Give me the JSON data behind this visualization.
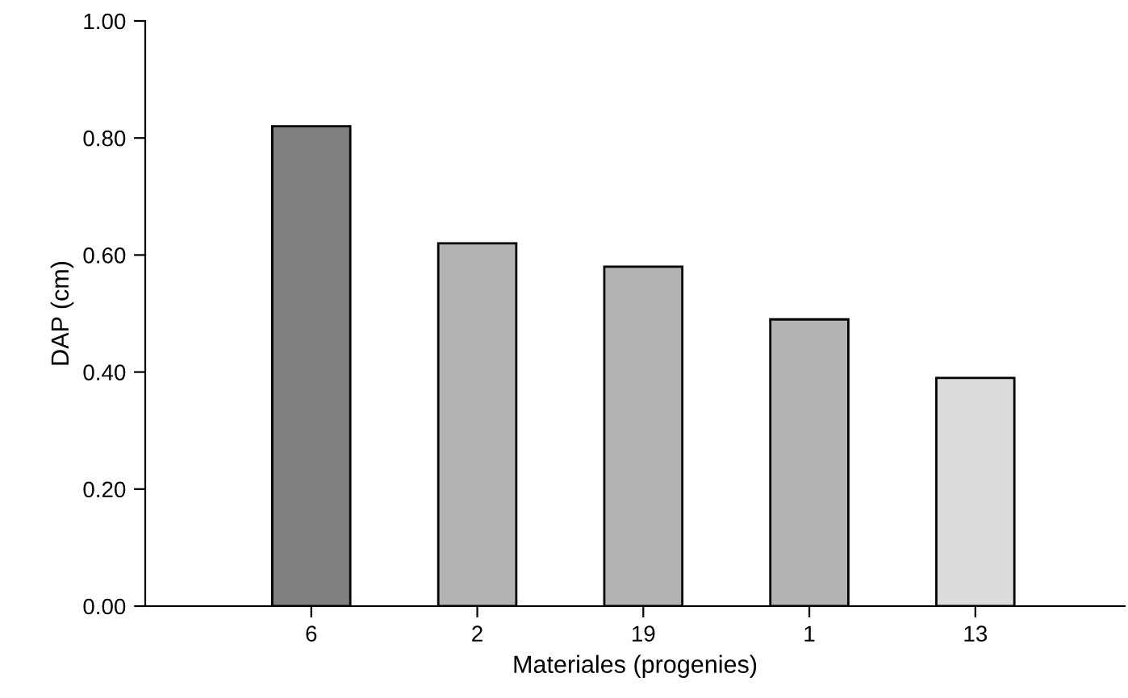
{
  "chart_data": {
    "type": "bar",
    "xlabel": "Materiales (progenies)",
    "ylabel": "DAP (cm)",
    "categories": [
      "6",
      "2",
      "19",
      "1",
      "13"
    ],
    "values": [
      0.82,
      0.62,
      0.58,
      0.49,
      0.39
    ],
    "colors": [
      "#808080",
      "#b3b3b3",
      "#b3b3b3",
      "#b3b3b3",
      "#dcdcdc"
    ],
    "ylim": [
      0,
      1
    ],
    "yticks": [
      {
        "value": 0,
        "label": "0.00"
      },
      {
        "value": 0.2,
        "label": "0.20"
      },
      {
        "value": 0.4,
        "label": "0.40"
      },
      {
        "value": 0.6,
        "label": "0.60"
      },
      {
        "value": 0.8,
        "label": "0.80"
      },
      {
        "value": 1,
        "label": "1.00"
      }
    ],
    "grid": false,
    "legend": false
  }
}
